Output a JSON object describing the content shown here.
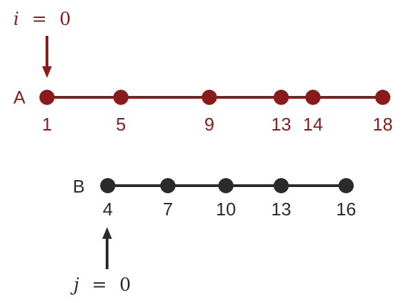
{
  "colors": {
    "array_a": "#8b1a1a",
    "array_b": "#2b2b2b",
    "background": "#ffffff"
  },
  "array_a": {
    "name": "A",
    "values": [
      "1",
      "5",
      "9",
      "13",
      "14",
      "18"
    ],
    "pointer": {
      "variable": "i",
      "equals": "=",
      "value": "0",
      "index": 0,
      "direction": "down"
    }
  },
  "array_b": {
    "name": "B",
    "values": [
      "4",
      "7",
      "10",
      "13",
      "16"
    ],
    "pointer": {
      "variable": "j",
      "equals": "=",
      "value": "0",
      "index": 0,
      "direction": "up"
    }
  }
}
